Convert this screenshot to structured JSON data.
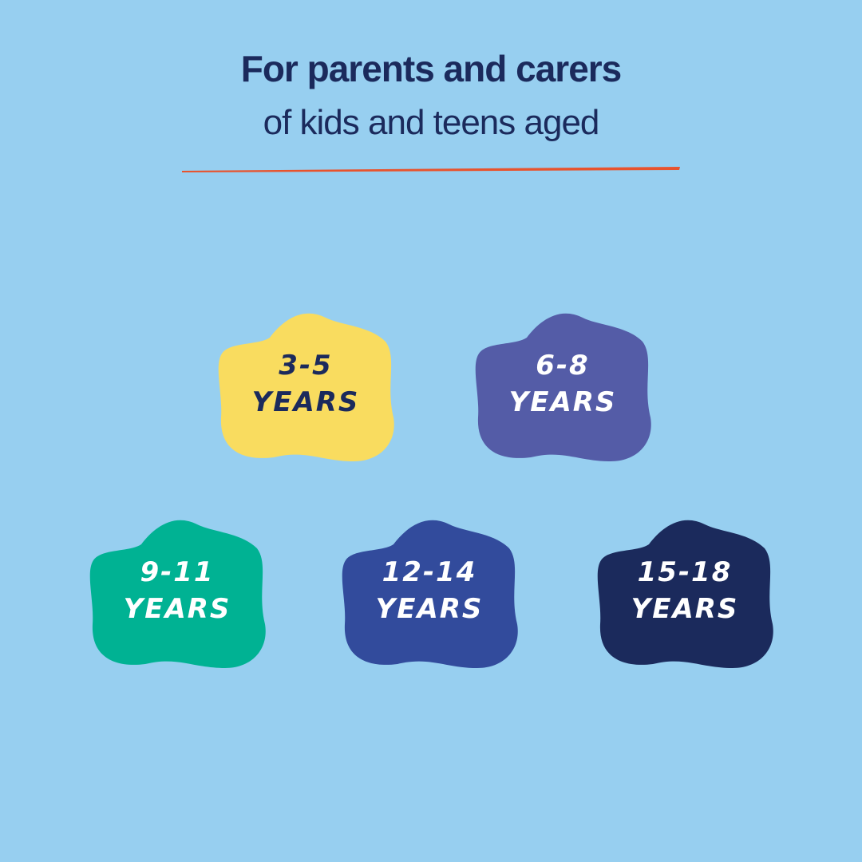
{
  "header": {
    "title": "For parents and carers",
    "subtitle": "of kids and teens aged"
  },
  "badges": [
    {
      "age": "3-5",
      "label": "YEARS"
    },
    {
      "age": "6-8",
      "label": "YEARS"
    },
    {
      "age": "9-11",
      "label": "YEARS"
    },
    {
      "age": "12-14",
      "label": "YEARS"
    },
    {
      "age": "15-18",
      "label": "YEARS"
    }
  ]
}
